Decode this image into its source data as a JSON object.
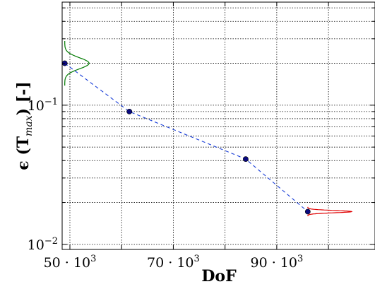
{
  "chart_data": {
    "type": "line",
    "title": "",
    "xlabel": "DoF",
    "ylabel": "ϵ (T_max) [-]",
    "ylabel_parts": {
      "prefix": "ϵ (T",
      "subscript": "max",
      "suffix": ") [-]"
    },
    "x_scale": "linear",
    "y_scale": "log",
    "xlim": [
      48500,
      109000
    ],
    "ylim": [
      0.0092,
      0.55
    ],
    "grid": true,
    "x_ticks": [
      {
        "value": 50000,
        "label_base": "50 · 10",
        "label_exp": "3"
      },
      {
        "value": 70000,
        "label_base": "70 · 10",
        "label_exp": "3"
      },
      {
        "value": 90000,
        "label_base": "90 · 10",
        "label_exp": "3"
      }
    ],
    "y_ticks": [
      {
        "value": 0.01,
        "label_base": "10",
        "label_exp": "−2"
      },
      {
        "value": 0.1,
        "label_base": "10",
        "label_exp": "−1"
      }
    ],
    "series": [
      {
        "x": [
          49000,
          61500,
          84000,
          96000
        ],
        "y": [
          0.2,
          0.09,
          0.041,
          0.0172
        ],
        "color": "#1a3fd8",
        "marker_color": "#0a0a80",
        "line_style": "dashed"
      }
    ],
    "distributions": [
      {
        "color": "#007a00",
        "at_x": 49000,
        "mean_y": 0.2,
        "spread": 0.12,
        "height": 4700
      },
      {
        "color": "#e00000",
        "at_x": 96000,
        "mean_y": 0.0172,
        "spread": 0.025,
        "height": 8500
      }
    ]
  }
}
